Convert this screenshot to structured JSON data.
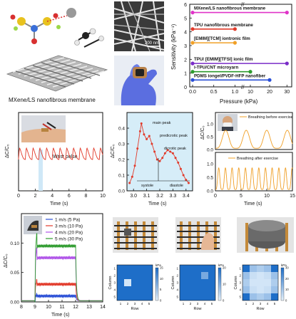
{
  "panel_a": {
    "caption": "MXene/LS nanofibrous membrane",
    "sem_scale": "200 nm"
  },
  "chart_data": [
    {
      "type": "dumbbell",
      "xlabel": "Pressure (kPa)",
      "ylabel": "Sensitivity (kPa⁻¹)",
      "ylim": [
        0,
        6
      ],
      "yticks": [
        "0",
        "1",
        "2",
        "3",
        "4",
        "5",
        "6"
      ],
      "xticks": [
        "0.0",
        "0.5",
        "1.0",
        "10",
        "20",
        "30"
      ],
      "series": [
        {
          "label": "MXene/LS nanofibrous membrane",
          "color": "#e033c8",
          "y": 5.4,
          "x": [
            0.0,
            30
          ]
        },
        {
          "label": "TPU nanofibrous membrane",
          "color": "#e23a2a",
          "y": 4.2,
          "x": [
            0.0,
            1.0
          ]
        },
        {
          "label": "[EMIM][TCM] iontronic film",
          "color": "#f0a028",
          "y": 3.2,
          "x": [
            0.0,
            1.0
          ]
        },
        {
          "label": "TPU/ [EMIM][TFSI] ionic film",
          "color": "#7a2cc8",
          "y": 1.7,
          "x": [
            0.0,
            30
          ]
        },
        {
          "label": "i-TPU/CNT microyarn",
          "color": "#2e9b2e",
          "y": 1.1,
          "x": [
            0.0,
            10
          ]
        },
        {
          "label": "PDMS iongel/PVDF-HFP nanofiber",
          "color": "#2a4fd6",
          "y": 0.5,
          "x": [
            0.0,
            20
          ]
        }
      ]
    },
    {
      "type": "line",
      "annotation": "Wrist pulse",
      "xlabel": "Time (s)",
      "ylabel": "ΔC/C₀",
      "xlim": [
        0,
        10
      ],
      "xticks": [
        "0",
        "2",
        "4",
        "6",
        "8",
        "10"
      ],
      "period_s": 0.8,
      "baseline": 0.3,
      "amplitude": 0.4,
      "color": "#e23a2a"
    },
    {
      "type": "line",
      "xlabel": "Time (s)",
      "ylabel": "ΔC/C₀",
      "xlim": [
        2.95,
        3.45
      ],
      "ylim": [
        0.0,
        0.5
      ],
      "xticks": [
        "3.0",
        "3.1",
        "3.2",
        "3.3",
        "3.4"
      ],
      "yticks": [
        "0.0",
        "0.1",
        "0.2",
        "0.3",
        "0.4"
      ],
      "annotations": [
        "main peak",
        "predicrotic peak",
        "dicrotic peak",
        "systole",
        "diastole"
      ],
      "color": "#e23a2a",
      "x": [
        2.97,
        2.99,
        3.01,
        3.03,
        3.05,
        3.06,
        3.08,
        3.1,
        3.12,
        3.14,
        3.16,
        3.18,
        3.2,
        3.22,
        3.24,
        3.26,
        3.28,
        3.3,
        3.32,
        3.34,
        3.36,
        3.38,
        3.4,
        3.42
      ],
      "y": [
        0.05,
        0.09,
        0.16,
        0.27,
        0.38,
        0.43,
        0.36,
        0.33,
        0.35,
        0.3,
        0.25,
        0.2,
        0.19,
        0.21,
        0.24,
        0.26,
        0.25,
        0.24,
        0.21,
        0.18,
        0.14,
        0.1,
        0.07,
        0.05
      ]
    },
    {
      "type": "line",
      "xlabel": "Time (s)",
      "ylabel": "ΔC/C₀",
      "xlim": [
        0,
        15
      ],
      "xticks": [
        "0",
        "5",
        "10",
        "15"
      ],
      "yticks": [
        "0.0",
        "0.5",
        "1.0"
      ],
      "color": "#f0a028",
      "series": [
        {
          "name": "Breathing before exercise",
          "period_s": 4.0,
          "peak": 0.7
        },
        {
          "name": "Breathing after exercise",
          "period_s": 1.3,
          "peak": 0.8
        }
      ]
    },
    {
      "type": "line",
      "xlabel": "Time (s)",
      "ylabel": "ΔC/C₀",
      "xlim": [
        8,
        14
      ],
      "ylim": [
        0.0,
        0.15
      ],
      "xticks": [
        "8",
        "9",
        "10",
        "11",
        "12",
        "13",
        "14"
      ],
      "yticks": [
        "0.00",
        "0.05",
        "0.10"
      ],
      "on_s": 9.0,
      "off_s": 12.0,
      "series": [
        {
          "name": "1 m/s (5 Pa)",
          "color": "#2a4fd6",
          "value": 0.01
        },
        {
          "name": "3 m/s (10 Pa)",
          "color": "#e23a2a",
          "value": 0.03
        },
        {
          "name": "4 m/s (20 Pa)",
          "color": "#b055e8",
          "value": 0.075
        },
        {
          "name": "5 m/s (30 Pa)",
          "color": "#2e9b2e",
          "value": 0.095
        }
      ]
    },
    {
      "type": "heatmap",
      "xlabel": "Row",
      "ylabel": "Column",
      "unit": "kPa",
      "scale_max": "15",
      "scale_ticks": [
        "0",
        "5",
        "10",
        "15"
      ],
      "ticks": [
        "1",
        "2",
        "3",
        "4",
        "5"
      ],
      "values": [
        [
          0,
          0,
          0,
          0,
          0
        ],
        [
          0,
          0,
          0,
          0,
          0
        ],
        [
          0,
          1,
          0,
          0,
          0
        ],
        [
          0,
          0,
          0,
          0,
          0
        ],
        [
          0,
          0,
          0,
          0,
          0
        ]
      ]
    },
    {
      "type": "heatmap",
      "xlabel": "Row",
      "ylabel": "Column",
      "unit": "kPa",
      "scale_max": "20",
      "scale_ticks": [
        "0",
        "10",
        "20"
      ],
      "ticks": [
        "1",
        "2",
        "3",
        "4",
        "5"
      ],
      "values": [
        [
          0,
          0,
          0,
          0,
          0
        ],
        [
          0,
          0,
          0,
          0.5,
          0
        ],
        [
          0,
          0,
          0,
          0,
          0
        ],
        [
          0,
          0,
          0,
          0,
          0
        ],
        [
          0,
          0,
          0,
          0,
          0
        ]
      ]
    },
    {
      "type": "heatmap",
      "xlabel": "Row",
      "ylabel": "Column",
      "unit": "kPa",
      "scale_max": "30",
      "scale_ticks": [
        "0",
        "10",
        "20",
        "30"
      ],
      "ticks": [
        "1",
        "2",
        "3",
        "4",
        "5"
      ],
      "values": [
        [
          0,
          0.7,
          0.8,
          0.7,
          0
        ],
        [
          0.7,
          0.95,
          1,
          0.95,
          0.7
        ],
        [
          0.8,
          1,
          1,
          1,
          0.8
        ],
        [
          0.7,
          0.95,
          1,
          0.95,
          0.7
        ],
        [
          0,
          0.7,
          0.8,
          0.7,
          0
        ]
      ]
    }
  ]
}
